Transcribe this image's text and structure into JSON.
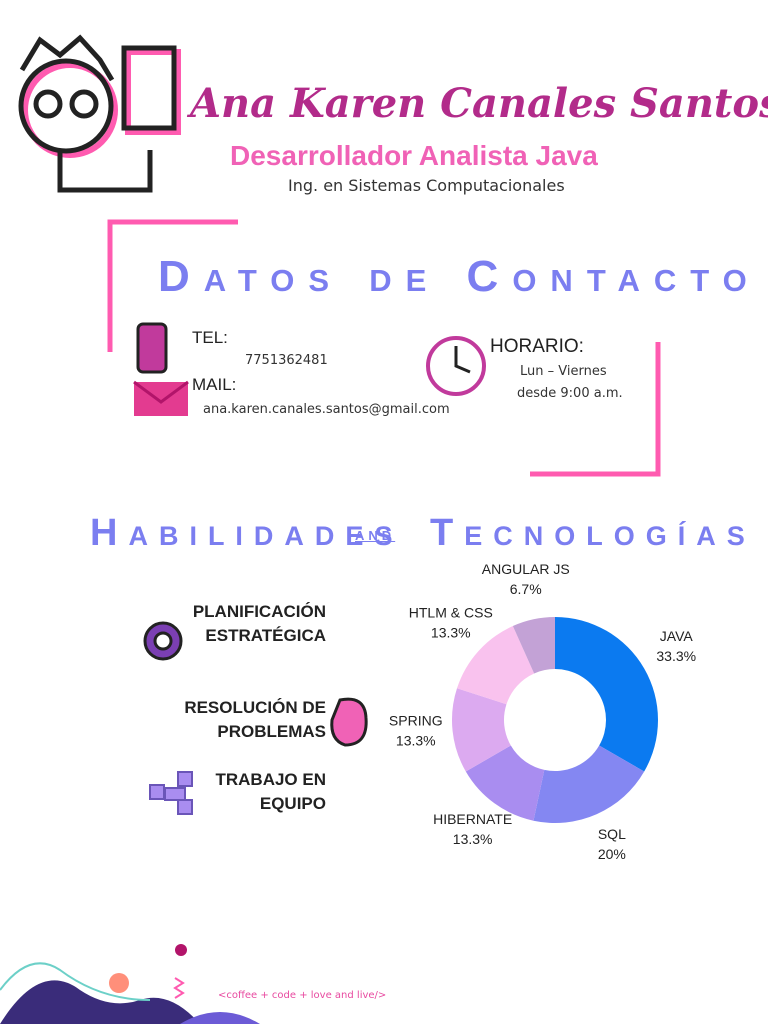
{
  "header": {
    "name": "Ana Karen Canales Santos",
    "role": "Desarrollador Analista Java",
    "degree": "Ing. en Sistemas Computacionales"
  },
  "contact": {
    "title": "Datos de Contacto",
    "tel_label": "TEL:",
    "tel": "7751362481",
    "mail_label": "MAIL:",
    "mail": "ana.karen.canales.santos@gmail.com",
    "schedule_label": "HORARIO:",
    "schedule_days": "Lun – Viernes",
    "schedule_time": "desde 9:00 a.m."
  },
  "skills": {
    "title_left": "Habilidades",
    "title_and": "and",
    "title_right": "Tecnologías",
    "items": [
      {
        "line1": "PLANIFICACIÓN",
        "line2": "ESTRATÉGICA"
      },
      {
        "line1": "RESOLUCIÓN DE",
        "line2": "PROBLEMAS"
      },
      {
        "line1": "TRABAJO EN",
        "line2": "EQUIPO"
      }
    ]
  },
  "chart_data": {
    "type": "donut",
    "categories": [
      "JAVA",
      "SQL",
      "HIBERNATE",
      "SPRING",
      "HTLM & CSS",
      "ANGULAR JS"
    ],
    "values": [
      33.3,
      20,
      13.3,
      13.3,
      13.3,
      6.7
    ],
    "value_labels": [
      "33.3%",
      "20%",
      "13.3%",
      "13.3%",
      "13.3%",
      "6.7%"
    ],
    "colors": [
      "#0b7af0",
      "#8487f2",
      "#a98df0",
      "#dcaaf0",
      "#f9c2ee",
      "#c3a2d6"
    ]
  },
  "footer": {
    "motto": "<coffee + code + love and live/>"
  }
}
